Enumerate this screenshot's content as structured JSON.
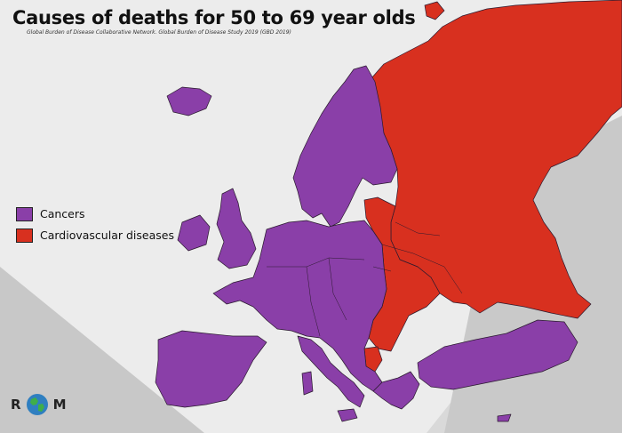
{
  "map": {
    "title": "Causes of deaths for 50 to 69 year olds",
    "source": "Global Burden of Disease Collaborative Network. Global Burden of Disease Study 2019 (GBD 2019)",
    "legend": [
      {
        "label": "Cancers",
        "color": "#8a3fa8"
      },
      {
        "label": "Cardiovascular diseases",
        "color": "#d8301f"
      }
    ],
    "logo": {
      "left": "R",
      "right": "M",
      "icon": "globe-icon"
    }
  },
  "colors": {
    "cancers": "#8a3fa8",
    "cardiovascular": "#d8301f",
    "background_light": "#eeeeee",
    "background_dark": "#c4c4c4",
    "border": "#2a1a2e"
  }
}
